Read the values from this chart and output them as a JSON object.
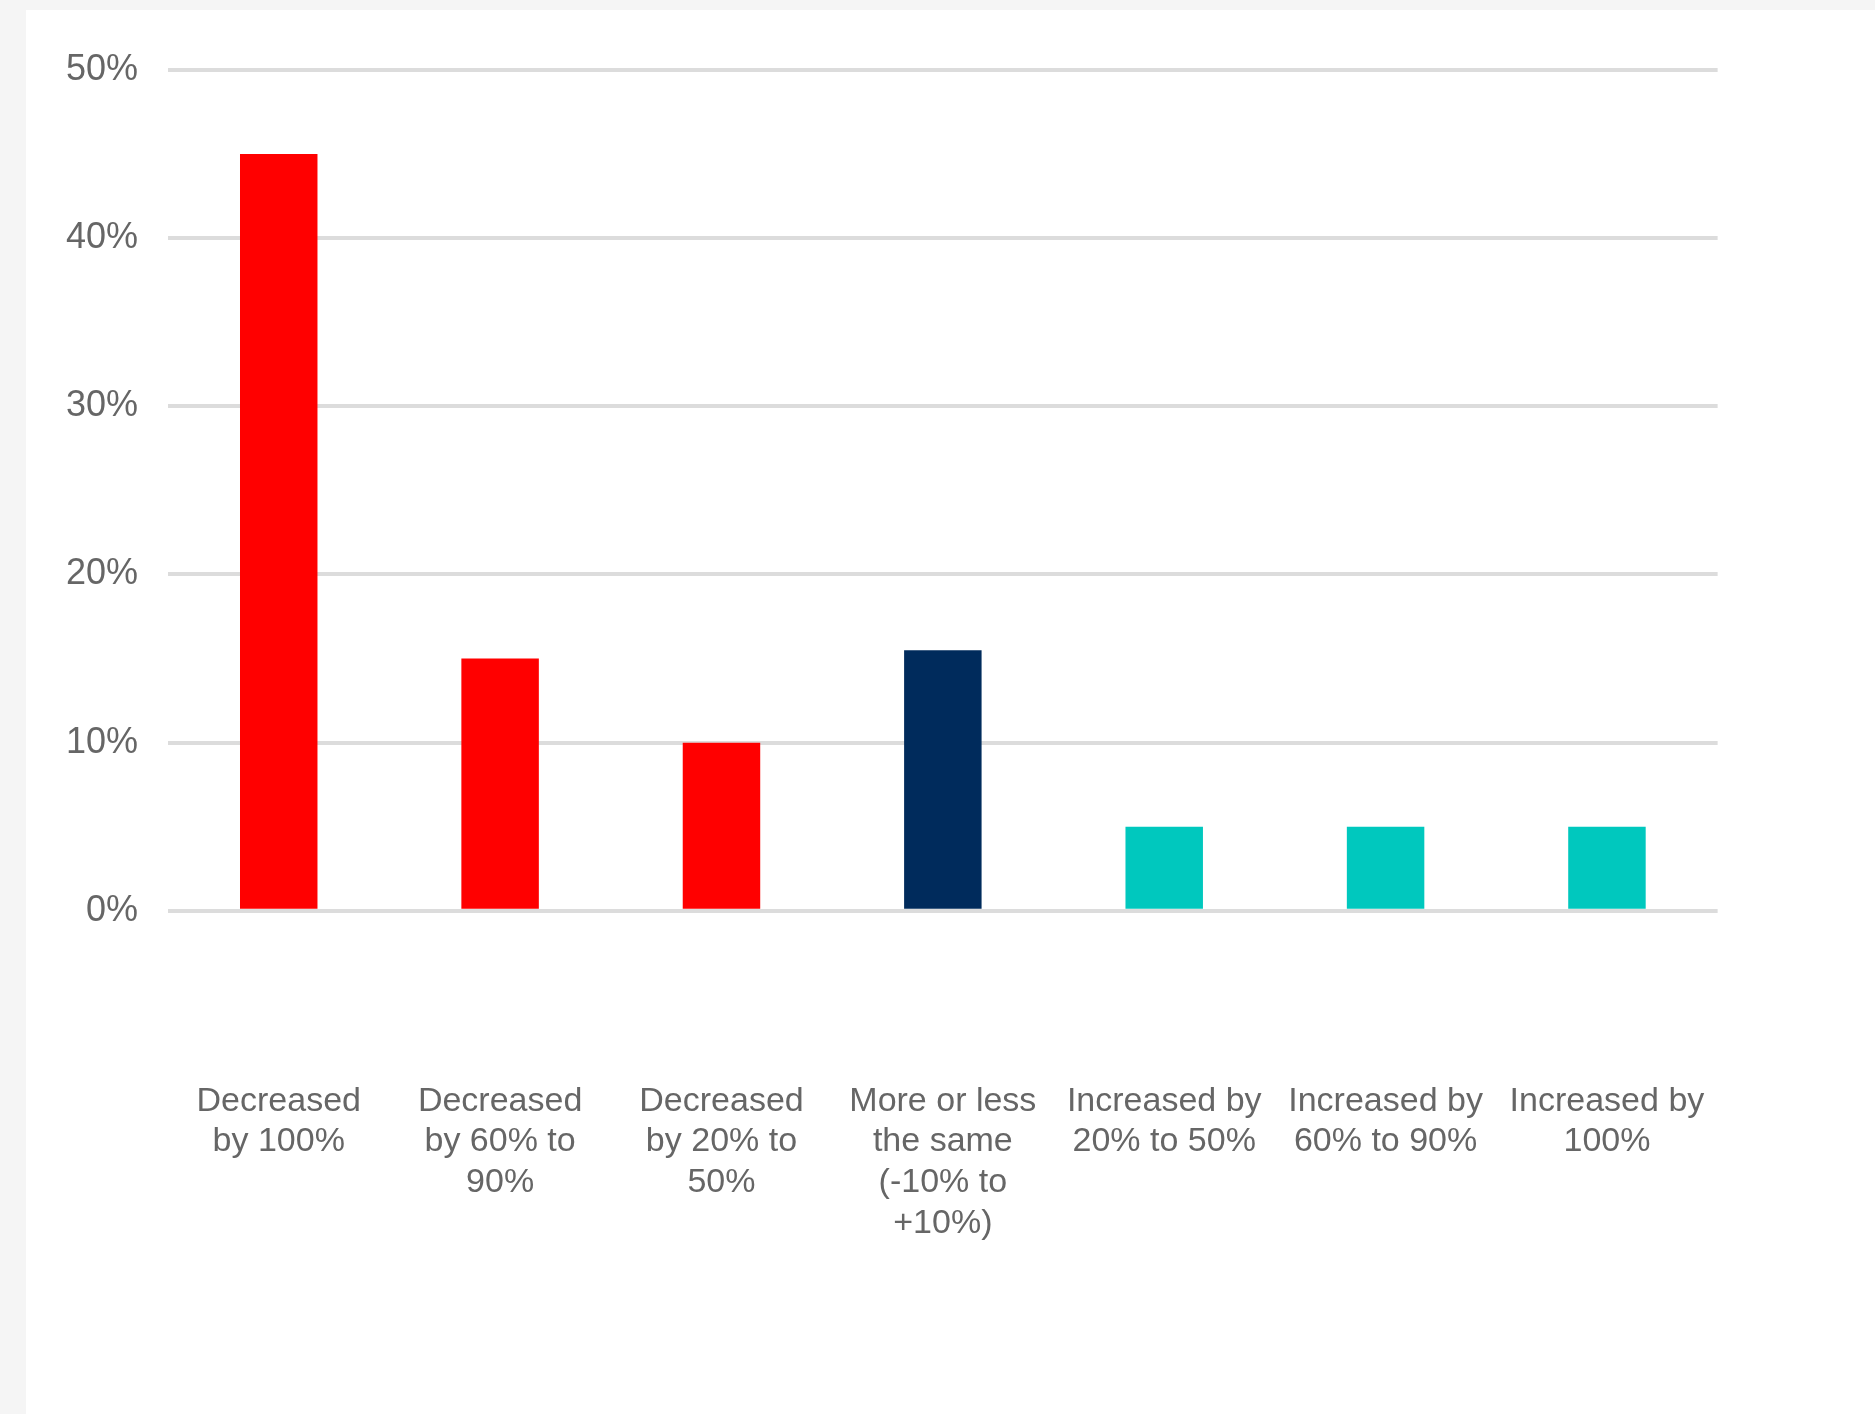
{
  "chart_data": {
    "type": "bar",
    "categories": [
      "Decreased by 100%",
      "Decreased by 60% to 90%",
      "Decreased by 20% to 50%",
      "More or less the same (-10% to +10%)",
      "Increased by 20% to 50%",
      "Increased by 60% to 90%",
      "Increased by 100%"
    ],
    "values": [
      45,
      15,
      10,
      15.5,
      5,
      5,
      5
    ],
    "colors": [
      "#ff0000",
      "#ff0000",
      "#ff0000",
      "#002b5c",
      "#00c8be",
      "#00c8be",
      "#00c8be"
    ],
    "ylim": [
      0,
      50
    ],
    "yticks": [
      {
        "value": 0,
        "label": "0%"
      },
      {
        "value": 10,
        "label": "10%"
      },
      {
        "value": 20,
        "label": "20%"
      },
      {
        "value": 30,
        "label": "30%"
      },
      {
        "value": 40,
        "label": "40%"
      },
      {
        "value": 50,
        "label": "50%"
      }
    ],
    "grid": "y",
    "legend": false
  }
}
